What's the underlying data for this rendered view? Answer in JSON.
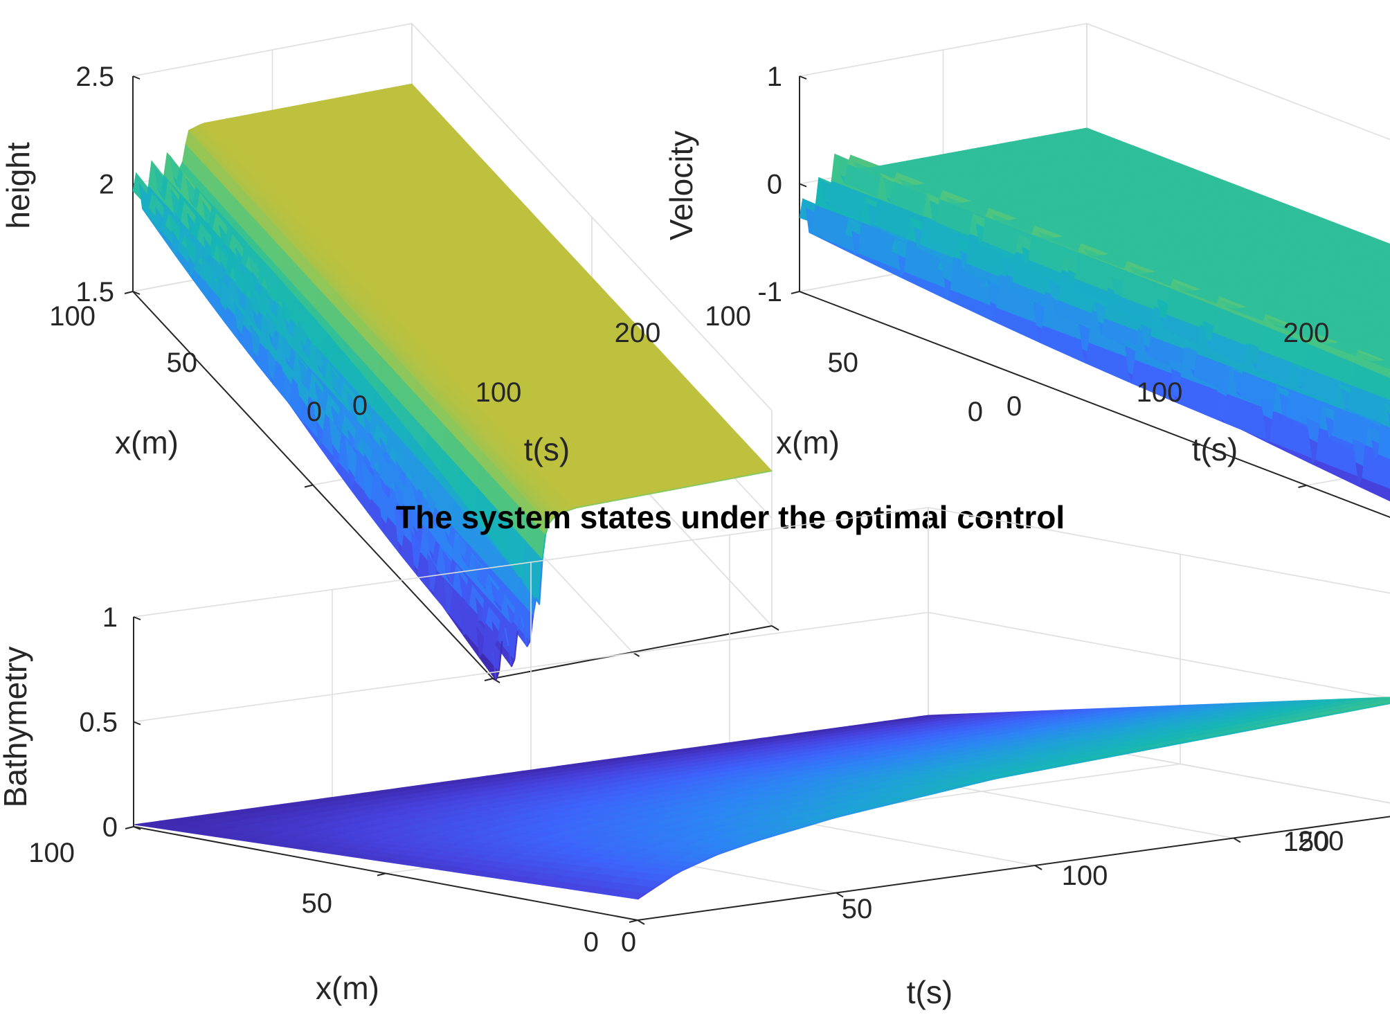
{
  "figure": {
    "title": "The system states under the optimal control",
    "colormap": [
      "#3e26a8",
      "#4743e0",
      "#3d64fa",
      "#2d84f5",
      "#1ea2d8",
      "#17b6b5",
      "#3bc38d",
      "#7fc862",
      "#c2c03b",
      "#f2c12f",
      "#fddd23",
      "#f9fb0e"
    ]
  },
  "chart_data": [
    {
      "type": "surface",
      "name": "height",
      "title": "",
      "xlabel": "t(s)",
      "ylabel": "x(m)",
      "zlabel": "height",
      "xlim": [
        0,
        200
      ],
      "ylim": [
        0,
        100
      ],
      "zlim": [
        1.5,
        2.5
      ],
      "xticks": [
        "0",
        "100",
        "200"
      ],
      "yticks": [
        "0",
        "50",
        "100"
      ],
      "zticks": [
        "1.5",
        "2",
        "2.5"
      ],
      "grid": true,
      "profile": {
        "t": [
          0,
          1,
          5,
          10,
          15,
          20,
          25,
          30,
          34,
          35,
          36,
          38,
          40,
          45,
          50,
          60,
          80,
          100,
          150,
          200
        ],
        "z_x0": [
          1.63,
          1.6,
          1.6,
          1.62,
          1.64,
          1.67,
          1.7,
          1.74,
          1.78,
          1.95,
          2.06,
          2.13,
          2.17,
          2.2,
          2.21,
          2.22,
          2.22,
          2.22,
          2.22,
          2.22
        ],
        "z_x100": [
          1.95,
          1.93,
          1.94,
          1.97,
          2.0,
          2.02,
          2.03,
          2.04,
          2.05,
          2.06,
          2.06,
          2.15,
          2.2,
          2.21,
          2.22,
          2.22,
          2.22,
          2.22,
          2.22,
          2.22
        ],
        "oscillation_amplitude": 0.12,
        "oscillation_until_t": 34
      }
    },
    {
      "type": "surface",
      "name": "velocity",
      "title": "",
      "xlabel": "t(s)",
      "ylabel": "x(m)",
      "zlabel": "Velocity",
      "xlim": [
        0,
        200
      ],
      "ylim": [
        0,
        100
      ],
      "zlim": [
        -1,
        1
      ],
      "xticks": [
        "0",
        "100",
        "200"
      ],
      "yticks": [
        "0",
        "50",
        "100"
      ],
      "zticks": [
        "-1",
        "0",
        "1"
      ],
      "grid": true,
      "profile": {
        "t": [
          0,
          1,
          5,
          10,
          15,
          20,
          25,
          30,
          34,
          35,
          36,
          38,
          40,
          45,
          50,
          60,
          80,
          100,
          150,
          200
        ],
        "z_x0": [
          -0.9,
          -0.9,
          -0.88,
          -0.82,
          -0.75,
          -0.65,
          -0.55,
          -0.45,
          -0.35,
          0.05,
          0.25,
          0.15,
          0.1,
          0.05,
          0.03,
          0.03,
          0.03,
          0.03,
          0.03,
          0.03
        ],
        "z_x100": [
          -0.35,
          -0.4,
          -0.35,
          -0.25,
          -0.15,
          -0.05,
          0.05,
          0.1,
          0.15,
          0.18,
          0.18,
          0.1,
          0.05,
          0.03,
          0.03,
          0.03,
          0.03,
          0.03,
          0.03,
          0.03
        ],
        "oscillation_amplitude": 0.25,
        "oscillation_until_t": 34
      }
    },
    {
      "type": "surface",
      "name": "bathymetry",
      "title": "",
      "xlabel": "t(s)",
      "ylabel": "x(m)",
      "zlabel": "Bathymetry",
      "xlim": [
        0,
        200
      ],
      "ylim": [
        0,
        100
      ],
      "zlim": [
        0,
        1
      ],
      "xticks": [
        "0",
        "50",
        "100",
        "150",
        "200"
      ],
      "yticks": [
        "0",
        "50",
        "100"
      ],
      "zticks": [
        "0",
        "0.5",
        "1"
      ],
      "grid": true,
      "profile": {
        "t": [
          0,
          10,
          20,
          30,
          40,
          50,
          60,
          70,
          80,
          90,
          100,
          110,
          120,
          130,
          140,
          150,
          160,
          170,
          180,
          190,
          200
        ],
        "z_x0": [
          0.1,
          0.2,
          0.26,
          0.3,
          0.33,
          0.36,
          0.38,
          0.4,
          0.42,
          0.44,
          0.45,
          0.46,
          0.47,
          0.48,
          0.49,
          0.5,
          0.51,
          0.52,
          0.53,
          0.54,
          0.55
        ],
        "z_x100": [
          0.01,
          0.01,
          0.01,
          0.01,
          0.01,
          0.01,
          0.01,
          0.01,
          0.01,
          0.01,
          0.01,
          0.01,
          0.01,
          0.01,
          0.01,
          0.01,
          0.01,
          0.01,
          0.01,
          0.01,
          0.01
        ]
      }
    }
  ]
}
